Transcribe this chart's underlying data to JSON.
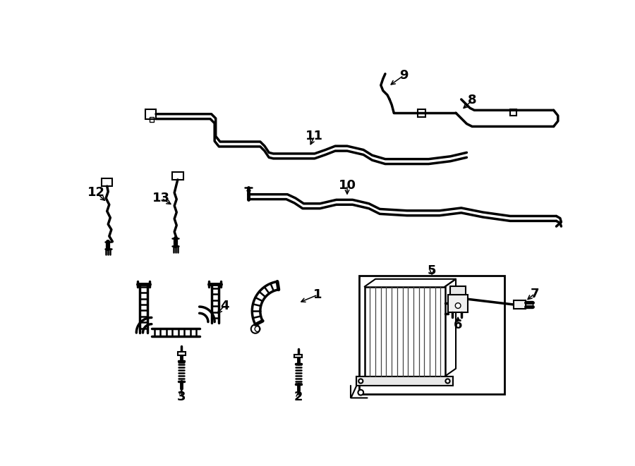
{
  "bg_color": "#ffffff",
  "line_color": "#000000",
  "lw": 1.8,
  "lw_thick": 2.5,
  "fs_label": 13,
  "fs_small": 10
}
